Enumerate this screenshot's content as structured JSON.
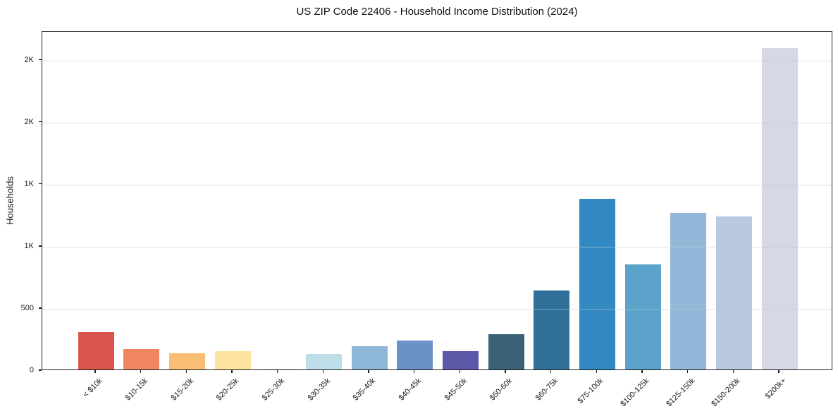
{
  "chart_data": {
    "type": "bar",
    "title": "US ZIP Code 22406 - Household Income Distribution (2024)",
    "xlabel": "",
    "ylabel": "Households",
    "categories": [
      "< $10k",
      "$10-15k",
      "$15-20k",
      "$20-25k",
      "$25-30k",
      "$30-35k",
      "$35-40k",
      "$40-45k",
      "$45-50k",
      "$50-60k",
      "$60-75k",
      "$75-100k",
      "$100-125k",
      "$125-150k",
      "$150-200k",
      "$200k+"
    ],
    "values": [
      300,
      165,
      130,
      150,
      5,
      125,
      185,
      230,
      145,
      285,
      635,
      1375,
      845,
      1260,
      1230,
      2590
    ],
    "bar_colors": [
      "#d9544d",
      "#f08562",
      "#fabd74",
      "#fce49e",
      "#eef7dc",
      "#bedfe9",
      "#8fb8d8",
      "#6b92c6",
      "#5c59a8",
      "#3a6175",
      "#2f7099",
      "#3289c2",
      "#5ba3cb",
      "#92b7d9",
      "#b9c8e0",
      "#d6d8e6"
    ],
    "ylim": [
      0,
      2730
    ],
    "yticks": [
      {
        "value": 0,
        "label": "0"
      },
      {
        "value": 500,
        "label": "500"
      },
      {
        "value": 1000,
        "label": "1K"
      },
      {
        "value": 1500,
        "label": "1K"
      },
      {
        "value": 2000,
        "label": "2K"
      },
      {
        "value": 2500,
        "label": "2K"
      }
    ],
    "grid": "horizontal",
    "legend": "none",
    "background": "#ffffff",
    "spine_color": "#1f1f1f"
  }
}
